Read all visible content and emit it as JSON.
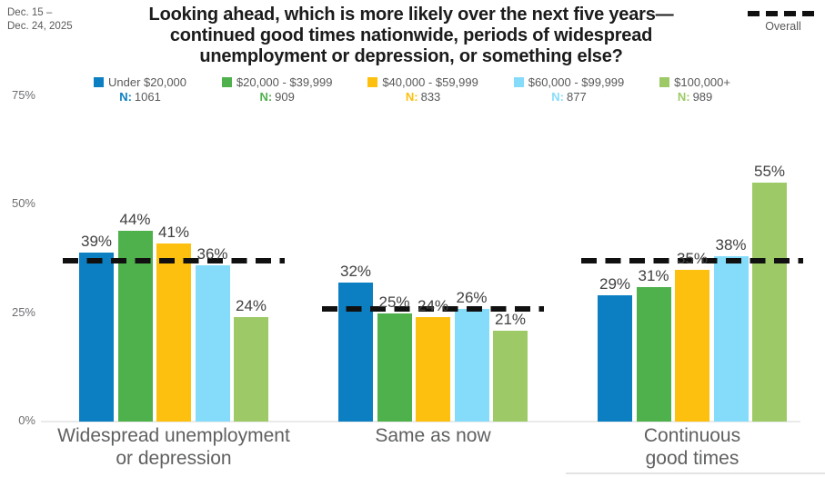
{
  "header": {
    "date_line1": "Dec. 15 –",
    "date_line2": "Dec. 24, 2025",
    "title_lines": [
      "Looking ahead, which is more likely over the next five years—",
      "continued good times nationwide, periods of widespread",
      "unemployment or depression, or something else?"
    ],
    "overall_legend_label": "Overall"
  },
  "legend": {
    "n_prefix": "N:"
  },
  "chart_data": {
    "type": "bar",
    "title": "Looking ahead, which is more likely over the next five years—continued good times nationwide, periods of widespread unemployment or depression, or something else?",
    "date_range": "Dec. 15 – Dec. 24, 2025",
    "categories": [
      "Widespread unemployment or depression",
      "Same as now",
      "Continuous good times"
    ],
    "category_label_lines": [
      [
        "Widespread unemployment",
        "or depression"
      ],
      [
        "Same as now"
      ],
      [
        "Continuous",
        "good times"
      ]
    ],
    "yticks": [
      0,
      25,
      50,
      75
    ],
    "ytick_suffix": "%",
    "ylim": [
      0,
      75
    ],
    "value_suffix": "%",
    "grid": false,
    "legend_position": "top",
    "series": [
      {
        "name": "Under $20,000",
        "n": "1061",
        "color": "#0B7FC1",
        "values": [
          39,
          32,
          29
        ]
      },
      {
        "name": "$20,000 - $39,999",
        "n": "909",
        "color": "#4FB14C",
        "values": [
          44,
          25,
          31
        ]
      },
      {
        "name": "$40,000 - $59,999",
        "n": "833",
        "color": "#FDC00F",
        "values": [
          41,
          24,
          35
        ]
      },
      {
        "name": "$60,000 - $99,999",
        "n": "877",
        "color": "#85DCFA",
        "values": [
          36,
          26,
          38
        ]
      },
      {
        "name": "$100,000+",
        "n": "989",
        "color": "#9DCA67",
        "values": [
          24,
          21,
          55
        ]
      }
    ],
    "overall": {
      "name": "Overall",
      "style": "dashed",
      "color": "#101010",
      "values": [
        37,
        26,
        37
      ]
    }
  }
}
